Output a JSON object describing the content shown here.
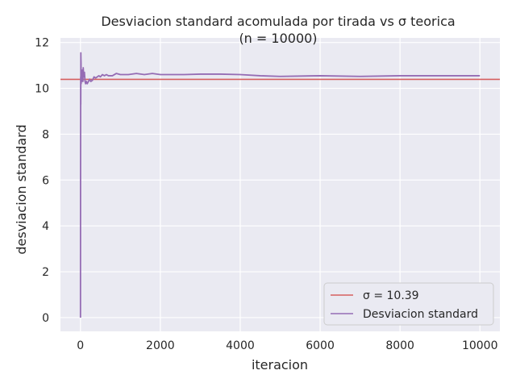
{
  "chart_data": {
    "type": "line",
    "title": "Desviacion standard acomulada por tirada vs σ teorica",
    "subtitle": "(n = 10000)",
    "xlabel": "iteracion",
    "ylabel": "desviacion standard",
    "xlim": [
      -500,
      10500
    ],
    "ylim": [
      -0.6,
      12.2
    ],
    "xticks": [
      0,
      2000,
      4000,
      6000,
      8000,
      10000
    ],
    "xtick_labels": [
      "0",
      "2000",
      "4000",
      "6000",
      "8000",
      "10000"
    ],
    "yticks": [
      0,
      2,
      4,
      6,
      8,
      10,
      12
    ],
    "ytick_labels": [
      "0",
      "2",
      "4",
      "6",
      "8",
      "10",
      "12"
    ],
    "grid": true,
    "legend_position": "lower-right",
    "reference_line": {
      "name": "σ = 10.39",
      "y": 10.39,
      "color": "#d65f5f"
    },
    "series": [
      {
        "name": "Desviacion standard",
        "color": "#956cb4",
        "x": [
          1,
          3,
          6,
          8,
          10,
          12,
          15,
          18,
          22,
          25,
          30,
          35,
          40,
          48,
          55,
          62,
          70,
          80,
          90,
          100,
          115,
          130,
          150,
          170,
          200,
          230,
          260,
          300,
          340,
          380,
          420,
          460,
          500,
          550,
          600,
          650,
          700,
          800,
          900,
          1000,
          1200,
          1400,
          1600,
          1800,
          2000,
          2300,
          2600,
          3000,
          3500,
          4000,
          4500,
          5000,
          6000,
          7000,
          8000,
          9000,
          10000
        ],
        "y": [
          0,
          6.1,
          10.5,
          9.3,
          11.55,
          11.3,
          11.1,
          10.2,
          10.4,
          10.8,
          10.5,
          10.3,
          10.6,
          10.4,
          10.8,
          10.3,
          10.9,
          10.5,
          10.6,
          10.7,
          10.3,
          10.2,
          10.3,
          10.2,
          10.3,
          10.4,
          10.3,
          10.35,
          10.5,
          10.45,
          10.5,
          10.55,
          10.5,
          10.6,
          10.55,
          10.6,
          10.55,
          10.55,
          10.65,
          10.6,
          10.6,
          10.65,
          10.6,
          10.65,
          10.6,
          10.6,
          10.6,
          10.62,
          10.62,
          10.6,
          10.55,
          10.52,
          10.55,
          10.52,
          10.55,
          10.55,
          10.55
        ]
      }
    ]
  }
}
